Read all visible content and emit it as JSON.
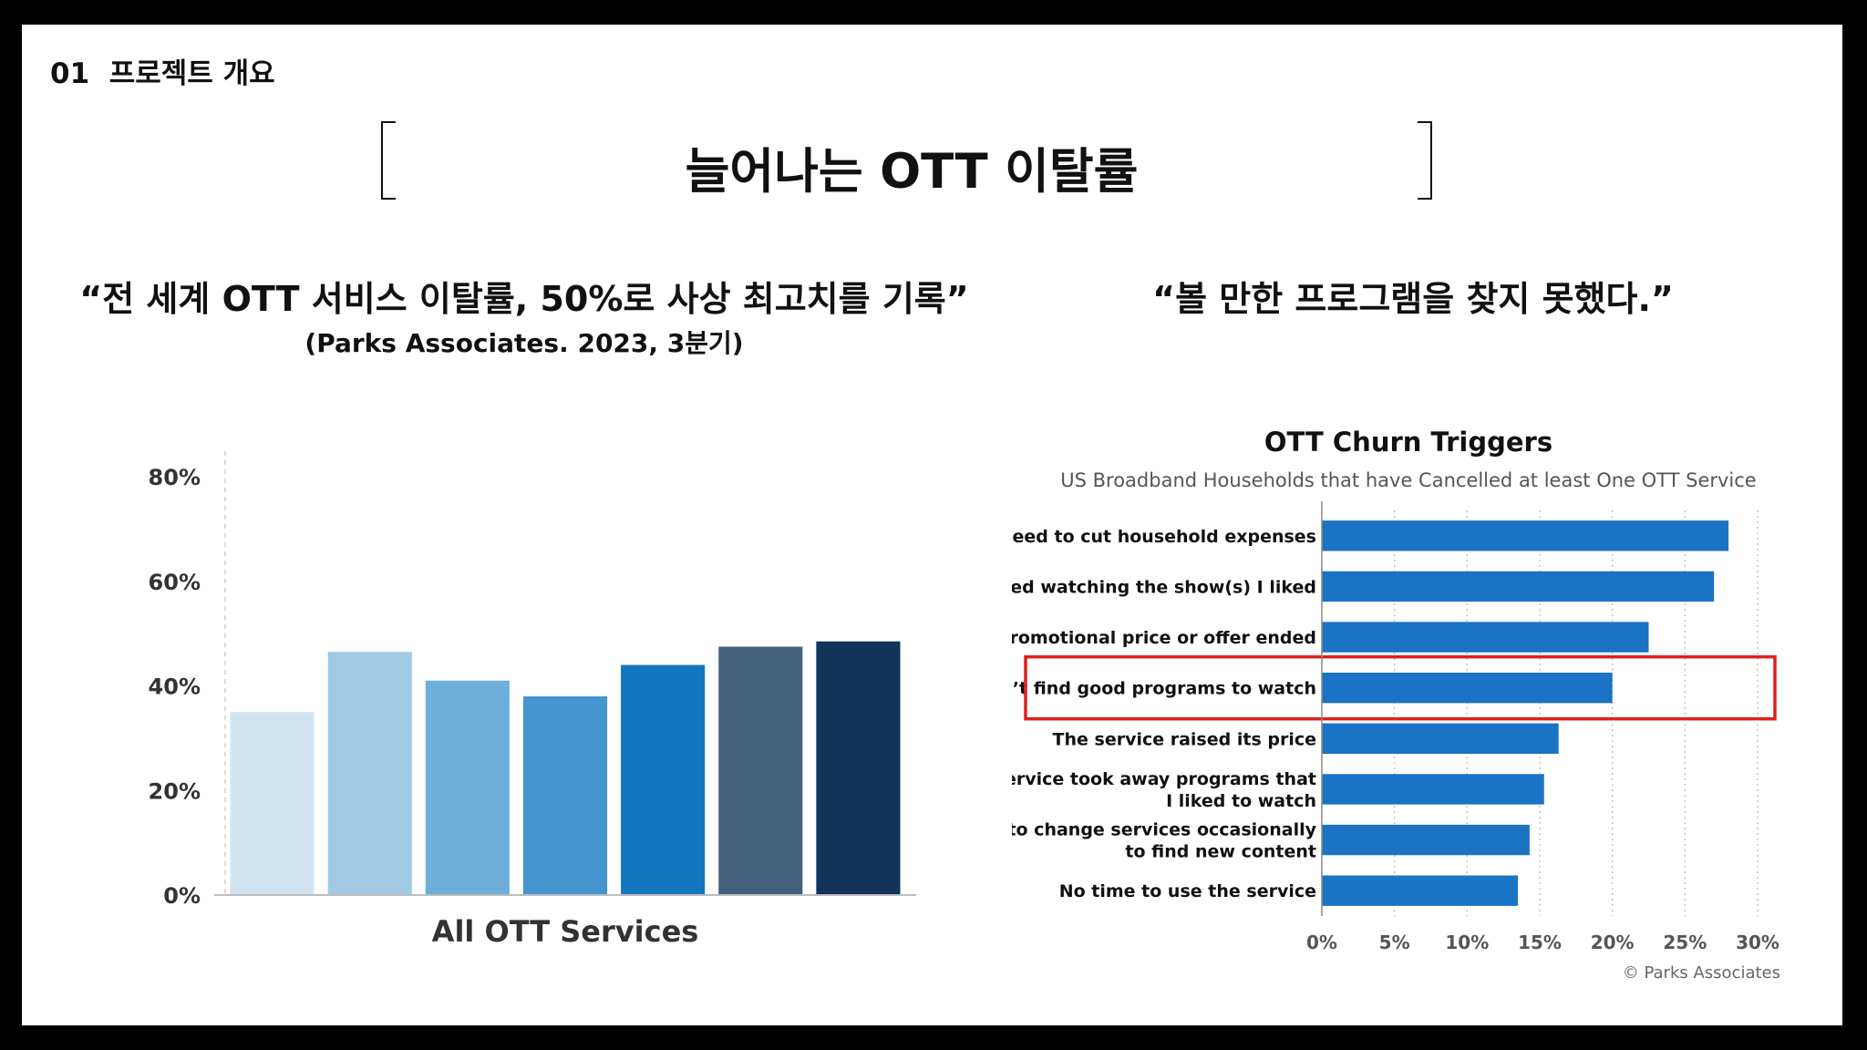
{
  "header": {
    "section": "01  프로젝트 개요",
    "title": "늘어나는 OTT 이탈률"
  },
  "left_panel": {
    "quote": "“전 세계 OTT 서비스 이탈률, 50%로 사상 최고치를 기록”",
    "source": "(Parks Associates. 2023, 3분기)"
  },
  "right_panel": {
    "quote": "“볼 만한 프로그램을 찾지 못했다.”",
    "highlight_color": "#e11d1d"
  },
  "chart_data": [
    {
      "type": "bar",
      "xlabel": "All OTT Services",
      "ylim": [
        0,
        80
      ],
      "yticks": [
        "80%",
        "60%",
        "40%",
        "20%",
        "0%"
      ],
      "ytick_values": [
        80,
        60,
        40,
        20,
        0
      ],
      "grid": false,
      "values": [
        35,
        46.5,
        41,
        38,
        44,
        47.5,
        48.5
      ],
      "colors": [
        "#d1e4f2",
        "#a2c9e4",
        "#6eaed9",
        "#4495d0",
        "#1277be",
        "#44617e",
        "#12345a"
      ]
    },
    {
      "type": "bar",
      "orientation": "horizontal",
      "title": "OTT Churn Triggers",
      "subtitle": "US Broadband Households that have Cancelled at least One OTT Service",
      "categories": [
        [
          "Need to cut household expenses"
        ],
        [
          "I finished watching the show(s) I liked"
        ],
        [
          "The promotional price or offer ended"
        ],
        [
          "Couldn’t find good programs to watch"
        ],
        [
          "The service raised its price"
        ],
        [
          "The service took away programs that",
          "I liked to watch"
        ],
        [
          "I like to change services occasionally",
          "to find new content"
        ],
        [
          "No time to use the service"
        ]
      ],
      "values": [
        28,
        27,
        22.5,
        20,
        16.3,
        15.3,
        14.3,
        13.5
      ],
      "highlighted_index": 3,
      "xlim": [
        0,
        30
      ],
      "xticks": [
        "0%",
        "5%",
        "10%",
        "15%",
        "20%",
        "25%",
        "30%"
      ],
      "xtick_values": [
        0,
        5,
        10,
        15,
        20,
        25,
        30
      ],
      "bar_color": "#1a73c4",
      "grid": true,
      "credit": "© Parks Associates"
    }
  ]
}
